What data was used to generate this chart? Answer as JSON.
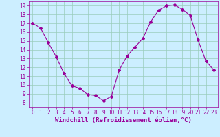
{
  "x": [
    0,
    1,
    2,
    3,
    4,
    5,
    6,
    7,
    8,
    9,
    10,
    11,
    12,
    13,
    14,
    15,
    16,
    17,
    18,
    19,
    20,
    21,
    22,
    23
  ],
  "y": [
    17,
    16.5,
    14.8,
    13.2,
    11.3,
    9.9,
    9.6,
    8.9,
    8.8,
    8.2,
    8.7,
    11.7,
    13.3,
    14.3,
    15.3,
    17.2,
    18.5,
    19.0,
    19.1,
    18.6,
    17.9,
    15.1,
    12.7,
    11.7
  ],
  "line_color": "#990099",
  "marker": "D",
  "marker_size": 2,
  "bg_color": "#cceeff",
  "grid_color": "#99ccbb",
  "xlabel": "Windchill (Refroidissement éolien,°C)",
  "xlim": [
    -0.5,
    23.5
  ],
  "ylim": [
    7.5,
    19.5
  ],
  "yticks": [
    8,
    9,
    10,
    11,
    12,
    13,
    14,
    15,
    16,
    17,
    18,
    19
  ],
  "xticks": [
    0,
    1,
    2,
    3,
    4,
    5,
    6,
    7,
    8,
    9,
    10,
    11,
    12,
    13,
    14,
    15,
    16,
    17,
    18,
    19,
    20,
    21,
    22,
    23
  ],
  "tick_label_color": "#990099",
  "xlabel_color": "#990099",
  "tick_fontsize": 5.5,
  "xlabel_fontsize": 6.5
}
